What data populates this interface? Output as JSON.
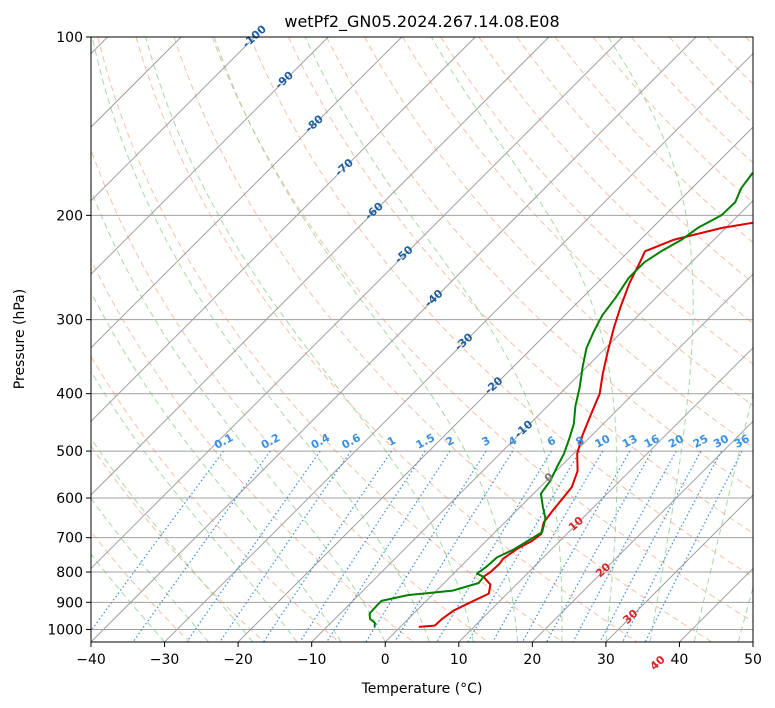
{
  "chart_data": {
    "type": "line",
    "subtype": "skew-t log-p diagram",
    "title": "wetPf2_GN05.2024.267.14.08.E08",
    "xlabel": "Temperature (°C)",
    "ylabel": "Pressure (hPa)",
    "xlim": [
      -40,
      50
    ],
    "ylim": [
      1050,
      100
    ],
    "y_scale": "log",
    "grid": true,
    "x_ticks": [
      -40,
      -30,
      -20,
      -10,
      0,
      10,
      20,
      30,
      40,
      50
    ],
    "y_ticks": [
      100,
      200,
      300,
      400,
      500,
      600,
      700,
      800,
      900,
      1000
    ],
    "series": [
      {
        "color": "#dd0000",
        "points": [
          [
            2.5,
            990
          ],
          [
            4.5,
            985
          ],
          [
            4.6,
            960
          ],
          [
            5,
            930
          ],
          [
            6.2,
            900
          ],
          [
            7.5,
            870
          ],
          [
            6.5,
            840
          ],
          [
            4.5,
            815
          ],
          [
            4.8,
            800
          ],
          [
            4.9,
            775
          ],
          [
            4.7,
            760
          ],
          [
            5.3,
            730
          ],
          [
            6.2,
            710
          ],
          [
            6.5,
            690
          ],
          [
            5.3,
            660
          ],
          [
            4.9,
            630
          ],
          [
            4.6,
            600
          ],
          [
            4.3,
            575
          ],
          [
            2.9,
            540
          ],
          [
            0.5,
            505
          ],
          [
            -1.3,
            470
          ],
          [
            -2.9,
            435
          ],
          [
            -4.6,
            400
          ],
          [
            -6.9,
            370
          ],
          [
            -9.2,
            340
          ],
          [
            -11.6,
            310
          ],
          [
            -13.6,
            285
          ],
          [
            -15.6,
            260
          ],
          [
            -17,
            240
          ],
          [
            -17.8,
            230
          ],
          [
            -15.5,
            220
          ],
          [
            -10.5,
            210
          ],
          [
            -2,
            200
          ],
          [
            3.2,
            190
          ],
          [
            7.2,
            180
          ],
          [
            10.4,
            170
          ],
          [
            13.4,
            160
          ],
          [
            15.5,
            150
          ],
          [
            17.1,
            140
          ],
          [
            18.8,
            130
          ],
          [
            20.1,
            120
          ],
          [
            21.7,
            110
          ],
          [
            23.2,
            100
          ]
        ]
      },
      {
        "color": "#008000",
        "points": [
          [
            -3.5,
            990
          ],
          [
            -4,
            975
          ],
          [
            -5.2,
            960
          ],
          [
            -6,
            940
          ],
          [
            -6.1,
            910
          ],
          [
            -6.1,
            895
          ],
          [
            -3.3,
            875
          ],
          [
            2.2,
            860
          ],
          [
            4.7,
            835
          ],
          [
            4.5,
            815
          ],
          [
            3.2,
            805
          ],
          [
            3.5,
            785
          ],
          [
            3.6,
            770
          ],
          [
            3.7,
            755
          ],
          [
            4.8,
            735
          ],
          [
            5.6,
            710
          ],
          [
            6.4,
            685
          ],
          [
            5,
            650
          ],
          [
            3,
            620
          ],
          [
            1,
            590
          ],
          [
            0.5,
            560
          ],
          [
            -0.5,
            530
          ],
          [
            -1.3,
            505
          ],
          [
            -2.7,
            475
          ],
          [
            -4,
            450
          ],
          [
            -6.2,
            420
          ],
          [
            -8.2,
            390
          ],
          [
            -10.6,
            360
          ],
          [
            -12.6,
            335
          ],
          [
            -13.8,
            315
          ],
          [
            -14.9,
            295
          ],
          [
            -15.5,
            275
          ],
          [
            -16.4,
            255
          ],
          [
            -16.4,
            240
          ],
          [
            -15.6,
            230
          ],
          [
            -14.4,
            220
          ],
          [
            -13.8,
            210
          ],
          [
            -12.3,
            200
          ],
          [
            -12.2,
            190
          ],
          [
            -13.3,
            180
          ],
          [
            -13.8,
            170
          ],
          [
            -12.2,
            160
          ],
          [
            -11.2,
            150
          ],
          [
            -9.8,
            140
          ],
          [
            -8.1,
            130
          ],
          [
            -6.6,
            120
          ],
          [
            -3.2,
            110
          ],
          [
            -0.6,
            100
          ]
        ]
      }
    ],
    "isotherm_labels": [
      "-100",
      "-90",
      "-80",
      "-70",
      "-60",
      "-50",
      "-40",
      "-30",
      "-20",
      "-10",
      "0",
      "10",
      "20",
      "30",
      "40"
    ],
    "mixing_ratio_labels": [
      "0.1",
      "0.2",
      "0.4",
      "0.6",
      "1",
      "1.5",
      "2",
      "3",
      "4",
      "6",
      "8",
      "10",
      "13",
      "16",
      "20",
      "25",
      "30",
      "36"
    ],
    "colors": {
      "temperature": "#dd0000",
      "dewpoint": "#008000",
      "isotherm_cold": "#1f5f9f",
      "isotherm_warm": "#d62728",
      "mixing_ratio": "#3a8fe0",
      "dry_adiabat": "#f4a582",
      "moist_adiabat": "#8fd18f"
    }
  }
}
